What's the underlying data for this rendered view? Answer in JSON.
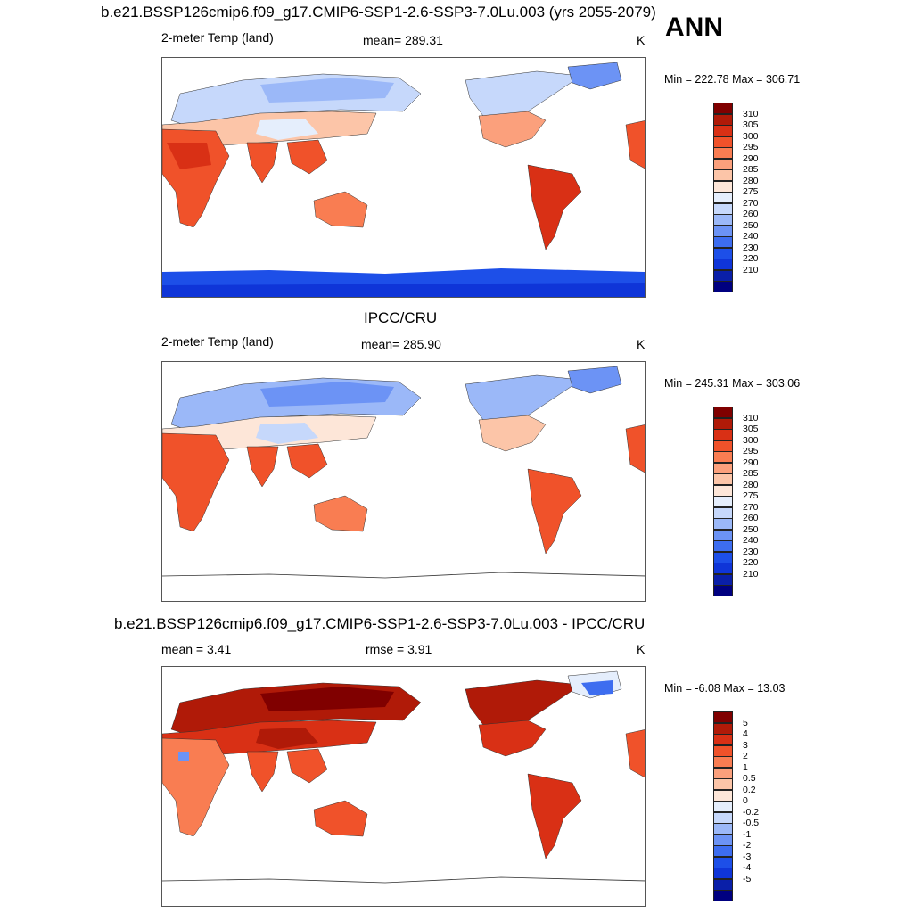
{
  "big_label": "ANN",
  "panels": [
    {
      "title": "b.e21.BSSP126cmip6.f09_g17.CMIP6-SSP1-2.6-SSP3-7.0Lu.003 (yrs 2055-2079)",
      "left_label": "2-meter Temp (land)",
      "center_label": "mean= 289.31",
      "unit": "K",
      "minmax": "Min = 222.78 Max = 306.71",
      "colorbar_ticks": [
        "310",
        "305",
        "300",
        "295",
        "290",
        "285",
        "280",
        "275",
        "270",
        "260",
        "250",
        "240",
        "230",
        "220",
        "210"
      ]
    },
    {
      "title": "IPCC/CRU",
      "left_label": "2-meter Temp (land)",
      "center_label": "mean= 285.90",
      "unit": "K",
      "minmax": "Min = 245.31 Max = 303.06",
      "colorbar_ticks": [
        "310",
        "305",
        "300",
        "295",
        "290",
        "285",
        "280",
        "275",
        "270",
        "260",
        "250",
        "240",
        "230",
        "220",
        "210"
      ]
    },
    {
      "title": "b.e21.BSSP126cmip6.f09_g17.CMIP6-SSP1-2.6-SSP3-7.0Lu.003 - IPCC/CRU",
      "left_label": "mean =   3.41",
      "center_label": "rmse =   3.91",
      "unit": "K",
      "minmax": "Min =  -6.08 Max =  13.03",
      "colorbar_ticks": [
        "5",
        "4",
        "3",
        "2",
        "1",
        "0.5",
        "0.2",
        "0",
        "-0.2",
        "-0.5",
        "-1",
        "-2",
        "-3",
        "-4",
        "-5"
      ]
    }
  ],
  "colors": {
    "abs_scale": [
      "#000080",
      "#0a1fa8",
      "#0f35d8",
      "#1d4fe8",
      "#3d6df0",
      "#6c93f5",
      "#9bb8f8",
      "#c6d8fb",
      "#e5eefc",
      "#fde6d8",
      "#fcc5a8",
      "#fba07c",
      "#f97d52",
      "#f0522a",
      "#d93015",
      "#b01a08",
      "#800000"
    ],
    "diff_scale": [
      "#000080",
      "#0a1fa8",
      "#0f35d8",
      "#1d4fe8",
      "#3d6df0",
      "#6c93f5",
      "#9bb8f8",
      "#c6d8fb",
      "#e5eefc",
      "#fde6d8",
      "#fcc5a8",
      "#fba07c",
      "#f97d52",
      "#f0522a",
      "#d93015",
      "#b01a08",
      "#800000"
    ]
  },
  "chart_data": [
    {
      "type": "heatmap",
      "title": "b.e21.BSSP126cmip6.f09_g17.CMIP6-SSP1-2.6-SSP3-7.0Lu.003 (yrs 2055-2079)",
      "variable": "2-meter Temp (land)",
      "units": "K",
      "mean": 289.31,
      "min": 222.78,
      "max": 306.71,
      "colorbar_levels": [
        210,
        220,
        230,
        240,
        250,
        260,
        270,
        275,
        280,
        285,
        290,
        295,
        300,
        305,
        310
      ]
    },
    {
      "type": "heatmap",
      "title": "IPCC/CRU",
      "variable": "2-meter Temp (land)",
      "units": "K",
      "mean": 285.9,
      "min": 245.31,
      "max": 303.06,
      "colorbar_levels": [
        210,
        220,
        230,
        240,
        250,
        260,
        270,
        275,
        280,
        285,
        290,
        295,
        300,
        305,
        310
      ]
    },
    {
      "type": "heatmap",
      "title": "b.e21.BSSP126cmip6.f09_g17.CMIP6-SSP1-2.6-SSP3-7.0Lu.003 - IPCC/CRU",
      "units": "K",
      "mean": 3.41,
      "rmse": 3.91,
      "min": -6.08,
      "max": 13.03,
      "colorbar_levels": [
        -5,
        -4,
        -3,
        -2,
        -1,
        -0.5,
        -0.2,
        0,
        0.2,
        0.5,
        1,
        2,
        3,
        4,
        5
      ]
    }
  ]
}
